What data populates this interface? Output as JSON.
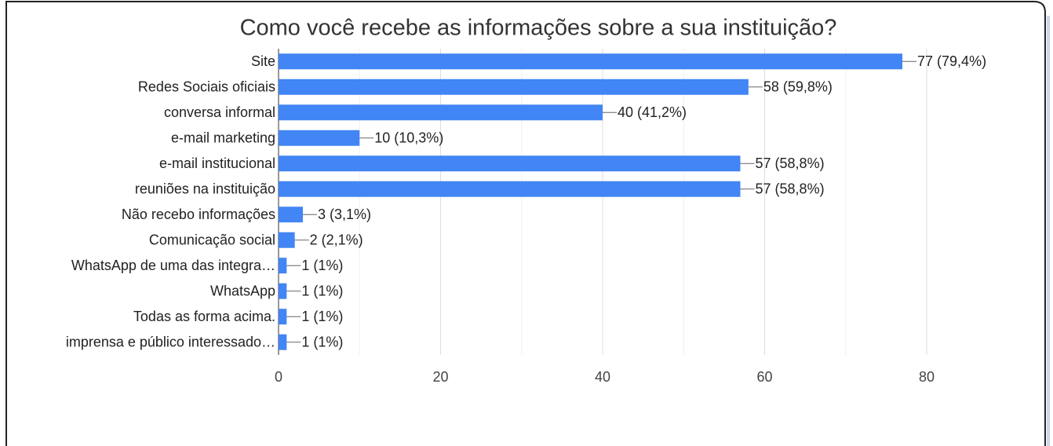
{
  "chart_data": {
    "type": "bar",
    "orientation": "horizontal",
    "title": "Como você recebe as informações sobre a sua instituição?",
    "categories": [
      "Site",
      "Redes Sociais oficiais",
      "conversa informal",
      "e-mail marketing",
      "e-mail institucional",
      "reuniões na instituição",
      "Não recebo informações",
      "Comunicação social",
      "WhatsApp de uma das integra…",
      "WhatsApp",
      "Todas as forma acima.",
      "imprensa e público interessado…"
    ],
    "values": [
      77,
      58,
      40,
      10,
      57,
      57,
      3,
      2,
      1,
      1,
      1,
      1
    ],
    "value_labels": [
      "77 (79,4%)",
      "58 (59,8%)",
      "40 (41,2%)",
      "10 (10,3%)",
      "57 (58,8%)",
      "57 (58,8%)",
      "3 (3,1%)",
      "2 (2,1%)",
      "1 (1%)",
      "1 (1%)",
      "1 (1%)",
      "1 (1%)"
    ],
    "color": "#4285f4",
    "xlim": [
      0,
      80
    ],
    "xticks": [
      0,
      20,
      40,
      60,
      80
    ],
    "minor_xticks": [
      10,
      30,
      50,
      70
    ],
    "grid": true
  }
}
